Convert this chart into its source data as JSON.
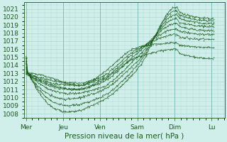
{
  "xlabel": "Pression niveau de la mer( hPa )",
  "bg_color": "#d0eeea",
  "grid_color": "#b0d8d2",
  "line_color": "#1a5c1a",
  "ylim": [
    1007.5,
    1021.8
  ],
  "yticks": [
    1008,
    1009,
    1010,
    1011,
    1012,
    1013,
    1014,
    1015,
    1016,
    1017,
    1018,
    1019,
    1020,
    1021
  ],
  "xtick_labels": [
    "Mer",
    "Jeu",
    "Ven",
    "Sam",
    "Dim",
    "Lu"
  ],
  "xtick_positions": [
    0,
    1,
    2,
    3,
    4,
    5
  ],
  "xlim": [
    -0.05,
    5.35
  ],
  "lines": [
    {
      "pts_x": [
        0.0,
        0.05,
        1.15,
        2.0,
        3.0,
        4.05,
        4.15,
        5.05
      ],
      "pts_y": [
        1015.0,
        1013.2,
        1008.2,
        1009.5,
        1013.5,
        1021.2,
        1020.5,
        1019.8
      ]
    },
    {
      "pts_x": [
        0.0,
        0.05,
        1.15,
        2.0,
        3.0,
        4.05,
        4.15,
        5.05
      ],
      "pts_y": [
        1014.8,
        1013.1,
        1009.0,
        1010.0,
        1014.0,
        1020.8,
        1020.2,
        1019.5
      ]
    },
    {
      "pts_x": [
        0.0,
        0.05,
        1.15,
        2.0,
        3.0,
        4.05,
        4.15,
        5.05
      ],
      "pts_y": [
        1014.5,
        1013.0,
        1009.8,
        1010.8,
        1014.5,
        1020.3,
        1019.8,
        1019.2
      ]
    },
    {
      "pts_x": [
        0.0,
        0.05,
        1.25,
        2.0,
        3.0,
        4.05,
        4.15,
        5.05
      ],
      "pts_y": [
        1014.2,
        1013.0,
        1010.5,
        1011.2,
        1015.0,
        1019.8,
        1019.3,
        1018.8
      ]
    },
    {
      "pts_x": [
        0.0,
        0.05,
        1.3,
        2.0,
        3.0,
        4.05,
        4.15,
        5.05
      ],
      "pts_y": [
        1013.8,
        1013.0,
        1011.0,
        1011.8,
        1015.5,
        1019.2,
        1018.8,
        1018.3
      ]
    },
    {
      "pts_x": [
        0.0,
        0.05,
        1.35,
        2.0,
        3.0,
        4.05,
        4.15,
        5.05
      ],
      "pts_y": [
        1013.5,
        1013.0,
        1011.5,
        1012.2,
        1015.8,
        1018.5,
        1018.2,
        1017.8
      ]
    },
    {
      "pts_x": [
        0.0,
        0.05,
        1.4,
        2.0,
        3.0,
        4.05,
        4.15,
        5.05
      ],
      "pts_y": [
        1013.2,
        1013.0,
        1011.8,
        1012.5,
        1016.0,
        1017.8,
        1017.5,
        1017.2
      ]
    },
    {
      "pts_x": [
        0.0,
        0.05,
        1.5,
        2.0,
        3.0,
        4.05,
        4.15,
        5.05
      ],
      "pts_y": [
        1013.0,
        1013.0,
        1011.5,
        1012.8,
        1016.2,
        1016.8,
        1016.5,
        1016.2
      ]
    },
    {
      "pts_x": [
        0.0,
        0.05,
        1.4,
        2.0,
        3.0,
        4.05,
        4.15,
        5.05
      ],
      "pts_y": [
        1013.0,
        1012.8,
        1011.0,
        1012.0,
        1015.0,
        1016.0,
        1015.5,
        1014.8
      ]
    }
  ],
  "font_size_ticks": 6.5,
  "font_size_xlabel": 7.5
}
